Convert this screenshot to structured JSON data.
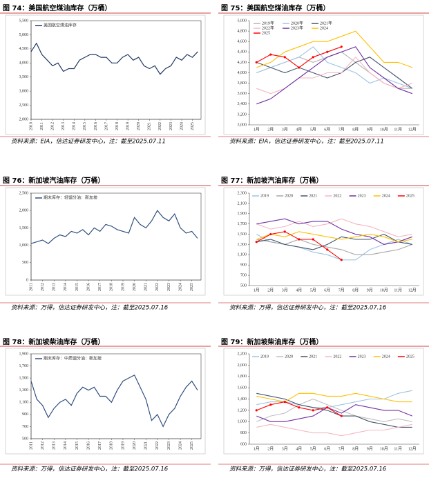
{
  "chart_data": [
    {
      "type": "line",
      "title": "图 74：美国航空煤油库存（万桶）",
      "source": "资料来源：EIA，信达证券研发中心，注：截至2025.07.11",
      "legend": "top-left",
      "x": [
        2010,
        2010.5,
        2011,
        2011.5,
        2012,
        2012.5,
        2013,
        2013.5,
        2014,
        2014.5,
        2015,
        2015.5,
        2016,
        2016.5,
        2017,
        2017.5,
        2018,
        2018.5,
        2019,
        2019.5,
        2020,
        2020.5,
        2021,
        2021.5,
        2022,
        2022.5,
        2023,
        2023.5,
        2024,
        2024.5,
        2025,
        2025.5
      ],
      "xlim": [
        2010,
        2025.8
      ],
      "xticks": [
        2010,
        2011,
        2012,
        2013,
        2014,
        2015,
        2016,
        2017,
        2018,
        2019,
        2020,
        2021,
        2022,
        2023,
        2024,
        2025
      ],
      "ylim": [
        2000,
        5500
      ],
      "yticks": [
        {
          "value": 2000,
          "label": "2,000"
        },
        {
          "value": 2500,
          "label": "2,500"
        },
        {
          "value": 3000,
          "label": "3,000"
        },
        {
          "value": 3500,
          "label": "3,500"
        },
        {
          "value": 4000,
          "label": "4,000"
        },
        {
          "value": 4500,
          "label": "4,500"
        },
        {
          "value": 5000,
          "label": "5,000"
        },
        {
          "value": 5500,
          "label": "5,500"
        }
      ],
      "series": [
        {
          "name": "美国航空煤油库存",
          "color": "#1f3864",
          "values": [
            4400,
            4700,
            4300,
            4100,
            3900,
            4000,
            3700,
            3800,
            3800,
            4100,
            4200,
            4300,
            4300,
            4200,
            4200,
            4000,
            4000,
            4200,
            4300,
            4100,
            4200,
            3900,
            3800,
            3900,
            3600,
            3800,
            3900,
            4200,
            4100,
            4300,
            4200,
            4400
          ]
        }
      ]
    },
    {
      "type": "line",
      "title": "图 75：美国航空煤油库存（万桶）",
      "source": "资料来源：EIA，信达证券研发中心，注：截至2025.07.11",
      "legend": "top-left",
      "categories": [
        "1月",
        "2月",
        "3月",
        "4月",
        "5月",
        "6月",
        "7月",
        "8月",
        "9月",
        "10月",
        "11月",
        "12月"
      ],
      "ylim": [
        3000,
        5000
      ],
      "yticks": [
        {
          "value": 3000,
          "label": "3,000"
        },
        {
          "value": 3200,
          "label": "3,200"
        },
        {
          "value": 3400,
          "label": "3,400"
        },
        {
          "value": 3600,
          "label": "3,600"
        },
        {
          "value": 3800,
          "label": "3,800"
        },
        {
          "value": 4000,
          "label": "4,000"
        },
        {
          "value": 4200,
          "label": "4,200"
        },
        {
          "value": 4400,
          "label": "4,400"
        },
        {
          "value": 4600,
          "label": "4,600"
        },
        {
          "value": 4800,
          "label": "4,800"
        },
        {
          "value": 5000,
          "label": "5,000"
        }
      ],
      "series": [
        {
          "name": "2019年",
          "color": "#b4b4b4",
          "values": [
            4000,
            4100,
            4200,
            4300,
            4200,
            4300,
            4400,
            4200,
            4000,
            3800,
            3700,
            3700
          ]
        },
        {
          "name": "2020年",
          "color": "#9dc3e6",
          "values": [
            4000,
            4100,
            4200,
            4300,
            4500,
            4200,
            4100,
            4000,
            3800,
            3900,
            3800,
            3700
          ]
        },
        {
          "name": "2021年",
          "color": "#44546a",
          "values": [
            4200,
            4100,
            4000,
            4100,
            4000,
            3900,
            4000,
            4200,
            4300,
            4100,
            3900,
            3700
          ]
        },
        {
          "name": "2022年",
          "color": "#f4b6c2",
          "values": [
            3700,
            3600,
            3700,
            3900,
            3900,
            4000,
            4000,
            4300,
            4000,
            3800,
            3700,
            3800
          ]
        },
        {
          "name": "2023年",
          "color": "#7030a0",
          "values": [
            3400,
            3500,
            3700,
            3900,
            4100,
            4300,
            4400,
            4500,
            4100,
            3900,
            3700,
            3600
          ]
        },
        {
          "name": "2024",
          "color": "#ffc000",
          "values": [
            4100,
            4200,
            4400,
            4500,
            4600,
            4600,
            4700,
            4800,
            4500,
            4200,
            4200,
            4100
          ]
        },
        {
          "name": "2025",
          "color": "#ff0000",
          "markers": true,
          "values": [
            4200,
            4350,
            4300,
            4100,
            4300,
            4400,
            4500,
            null,
            null,
            null,
            null,
            null
          ]
        }
      ]
    },
    {
      "type": "line",
      "title": "图 76：新加坡汽油库存（万桶）",
      "source": "资料来源：万得，信达证券研发中心，注：截至2025.07.16",
      "legend": "top-left",
      "x": [
        2011,
        2011.5,
        2012,
        2012.5,
        2013,
        2013.5,
        2014,
        2014.5,
        2015,
        2015.5,
        2016,
        2016.5,
        2017,
        2017.5,
        2018,
        2018.5,
        2019,
        2019.5,
        2020,
        2020.5,
        2021,
        2021.5,
        2022,
        2022.5,
        2023,
        2023.5,
        2024,
        2024.5,
        2025,
        2025.5
      ],
      "xlim": [
        2011,
        2025.8
      ],
      "xticks": [
        2011,
        2012,
        2013,
        2014,
        2015,
        2016,
        2017,
        2018,
        2019,
        2020,
        2021,
        2022,
        2023,
        2024,
        2025
      ],
      "ylim": [
        0,
        2500
      ],
      "yticks": [
        0,
        500,
        {
          "value": 1000,
          "label": "1,000"
        },
        {
          "value": 1500,
          "label": "1,500"
        },
        {
          "value": 2000,
          "label": "2,000"
        },
        {
          "value": 2500,
          "label": "2,500"
        }
      ],
      "series": [
        {
          "name": "期末库存：轻馏分油：新加坡",
          "color": "#2f4f7f",
          "values": [
            1050,
            1100,
            1150,
            1050,
            1200,
            1300,
            1250,
            1400,
            1350,
            1450,
            1300,
            1500,
            1400,
            1600,
            1550,
            1450,
            1400,
            1350,
            1800,
            1600,
            1500,
            1700,
            2000,
            1800,
            1700,
            1900,
            1500,
            1350,
            1400,
            1200
          ]
        }
      ]
    },
    {
      "type": "line",
      "title": "图 77：新加坡汽油库存（万桶）",
      "source": "资料来源：万得，信达证券研发中心，注：截至2025.07.16",
      "legend": "top",
      "categories": [
        "1月",
        "2月",
        "3月",
        "4月",
        "5月",
        "6月",
        "7月",
        "8月",
        "9月",
        "10月",
        "11月",
        "12月"
      ],
      "ylim": [
        500,
        2300
      ],
      "yticks": [
        500,
        700,
        900,
        {
          "value": 1100,
          "label": "1,100"
        },
        {
          "value": 1300,
          "label": "1,300"
        },
        {
          "value": 1500,
          "label": "1,500"
        },
        {
          "value": 1700,
          "label": "1,700"
        },
        {
          "value": 1900,
          "label": "1,900"
        },
        {
          "value": 2100,
          "label": "2,100"
        },
        {
          "value": 2300,
          "label": "2,300"
        }
      ],
      "series": [
        {
          "name": "2019",
          "color": "#9dc3e6",
          "values": [
            1500,
            1350,
            1300,
            1250,
            1150,
            1100,
            1000,
            1000,
            1200,
            1300,
            1400,
            1300
          ]
        },
        {
          "name": "2020",
          "color": "#a6a6a6",
          "values": [
            1400,
            1350,
            1300,
            1400,
            1300,
            1250,
            1200,
            1100,
            1100,
            1150,
            1200,
            1300
          ]
        },
        {
          "name": "2021",
          "color": "#44546a",
          "values": [
            1350,
            1400,
            1300,
            1250,
            1200,
            1300,
            1450,
            1400,
            1400,
            1500,
            1350,
            1300
          ]
        },
        {
          "name": "2022",
          "color": "#f4b6c2",
          "values": [
            1700,
            1600,
            1650,
            1750,
            1650,
            1700,
            1800,
            1700,
            1650,
            1550,
            1450,
            1500
          ]
        },
        {
          "name": "2023",
          "color": "#7030a0",
          "values": [
            1700,
            1750,
            1800,
            1700,
            1750,
            1750,
            1600,
            1500,
            1450,
            1300,
            1350,
            1450
          ]
        },
        {
          "name": "2024",
          "color": "#ffc000",
          "values": [
            1400,
            1500,
            1450,
            1550,
            1500,
            1450,
            1400,
            1450,
            1500,
            1450,
            1350,
            1400
          ]
        },
        {
          "name": "2025",
          "color": "#ff0000",
          "markers": true,
          "values": [
            1350,
            1500,
            1550,
            1400,
            1400,
            1200,
            1000,
            null,
            null,
            null,
            null,
            null
          ]
        }
      ]
    },
    {
      "type": "line",
      "title": "图 78：新加坡柴油库存（万桶）",
      "source": "资料来源：万得，信达证券研发中心，注：截至2025.07.16",
      "legend": "top-left",
      "x": [
        2011,
        2011.5,
        2012,
        2012.5,
        2013,
        2013.5,
        2014,
        2014.5,
        2015,
        2015.5,
        2016,
        2016.5,
        2017,
        2017.5,
        2018,
        2018.5,
        2019,
        2019.5,
        2020,
        2020.5,
        2021,
        2021.5,
        2022,
        2022.5,
        2023,
        2023.5,
        2024,
        2024.5,
        2025,
        2025.5
      ],
      "xlim": [
        2011,
        2025.8
      ],
      "xticks": [
        2011,
        2012,
        2013,
        2014,
        2015,
        2016,
        2017,
        2018,
        2019,
        2020,
        2021,
        2022,
        2023,
        2024,
        2025
      ],
      "ylim": [
        500,
        1900
      ],
      "yticks": [
        500,
        700,
        900,
        {
          "value": 1100,
          "label": "1,100"
        },
        {
          "value": 1300,
          "label": "1,300"
        },
        {
          "value": 1500,
          "label": "1,500"
        },
        {
          "value": 1700,
          "label": "1,700"
        },
        {
          "value": 1900,
          "label": "1,900"
        }
      ],
      "series": [
        {
          "name": "期末库存：中质馏分油：新加坡",
          "color": "#2f4f7f",
          "values": [
            1450,
            1150,
            1050,
            850,
            1000,
            1100,
            1150,
            1050,
            1250,
            1350,
            1300,
            1350,
            1200,
            1200,
            1100,
            1300,
            1450,
            1500,
            1550,
            1350,
            1150,
            800,
            900,
            700,
            900,
            1000,
            1200,
            1350,
            1450,
            1300
          ]
        }
      ]
    },
    {
      "type": "line",
      "title": "图 79：新加坡柴油库存（万桶）",
      "source": "资料来源：万得，信达证券研发中心，注：截至2025.07.16",
      "legend": "top",
      "categories": [
        "1月",
        "2月",
        "3月",
        "4月",
        "5月",
        "6月",
        "7月",
        "8月",
        "9月",
        "10月",
        "11月",
        "12月"
      ],
      "ylim": [
        600,
        2200
      ],
      "yticks": [
        600,
        800,
        {
          "value": 1000,
          "label": "1,000"
        },
        {
          "value": 1200,
          "label": "1,200"
        },
        {
          "value": 1400,
          "label": "1,400"
        },
        {
          "value": 1600,
          "label": "1,600"
        },
        {
          "value": 1800,
          "label": "1,800"
        },
        {
          "value": 2000,
          "label": "2,000"
        },
        {
          "value": 2200,
          "label": "2,200"
        }
      ],
      "series": [
        {
          "name": "2019",
          "color": "#9dc3e6",
          "values": [
            1300,
            1350,
            1350,
            1300,
            1250,
            1250,
            1300,
            1350,
            1400,
            1400,
            1500,
            1550
          ]
        },
        {
          "name": "2020",
          "color": "#bfbfbf",
          "values": [
            1000,
            1100,
            1150,
            1300,
            1400,
            1300,
            1200,
            1100,
            1050,
            1000,
            1050,
            1000
          ]
        },
        {
          "name": "2021",
          "color": "#44546a",
          "values": [
            1500,
            1450,
            1400,
            1300,
            1250,
            1200,
            1100,
            1100,
            1000,
            950,
            900,
            900
          ]
        },
        {
          "name": "2022",
          "color": "#f4b6c2",
          "values": [
            900,
            950,
            900,
            850,
            800,
            800,
            750,
            800,
            850,
            850,
            900,
            950
          ]
        },
        {
          "name": "2023",
          "color": "#7030a0",
          "values": [
            1100,
            1000,
            1000,
            1050,
            1100,
            1250,
            1150,
            1300,
            1250,
            1200,
            1200,
            1100
          ]
        },
        {
          "name": "2024",
          "color": "#ffc000",
          "values": [
            1450,
            1400,
            1350,
            1500,
            1500,
            1450,
            1450,
            1500,
            1450,
            1400,
            1350,
            1350
          ]
        },
        {
          "name": "2025",
          "color": "#ff0000",
          "markers": true,
          "values": [
            1200,
            1300,
            1350,
            1250,
            1200,
            1250,
            1100,
            null,
            null,
            null,
            null,
            null
          ]
        }
      ]
    }
  ]
}
